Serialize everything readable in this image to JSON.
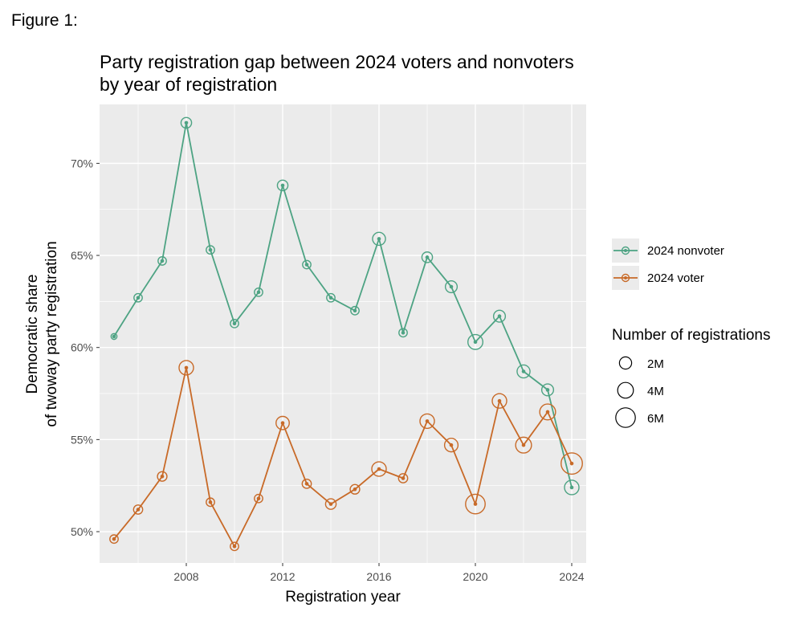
{
  "figure_label": "Figure 1:",
  "chart_data": {
    "type": "line",
    "title": "Party registration gap between 2024 voters and nonvoters",
    "subtitle": "by year of registration",
    "xlabel": "Registration year",
    "ylabel_line1": "Democratic share",
    "ylabel_line2": "of twoway party registration",
    "xlim": [
      2004.4,
      2024.6
    ],
    "ylim": [
      48.3,
      73.2
    ],
    "x_ticks": [
      2008,
      2012,
      2016,
      2020,
      2024
    ],
    "x_tick_labels": [
      "2008",
      "2012",
      "2016",
      "2020",
      "2024"
    ],
    "y_ticks": [
      50,
      55,
      60,
      65,
      70
    ],
    "y_tick_labels": [
      "50%",
      "55%",
      "60%",
      "65%",
      "70%"
    ],
    "grid": true,
    "legend_position": "right",
    "series": [
      {
        "name": "2024 nonvoter",
        "color": "#4da383",
        "x": [
          2005,
          2006,
          2007,
          2008,
          2009,
          2010,
          2011,
          2012,
          2013,
          2014,
          2015,
          2016,
          2017,
          2018,
          2019,
          2020,
          2021,
          2022,
          2023,
          2024
        ],
        "values": [
          60.6,
          62.7,
          64.7,
          72.2,
          65.3,
          61.3,
          63.0,
          68.8,
          64.5,
          62.7,
          62.0,
          65.9,
          60.8,
          64.9,
          63.3,
          60.3,
          61.7,
          58.7,
          57.7,
          52.4
        ],
        "registrations_m": [
          0.5,
          1.0,
          1.0,
          1.6,
          1.0,
          1.0,
          1.0,
          1.6,
          1.0,
          1.0,
          1.0,
          2.4,
          1.0,
          1.6,
          2.0,
          3.2,
          2.0,
          2.4,
          2.0,
          3.0
        ]
      },
      {
        "name": "2024 voter",
        "color": "#c86a28",
        "x": [
          2005,
          2006,
          2007,
          2008,
          2009,
          2010,
          2011,
          2012,
          2013,
          2014,
          2015,
          2016,
          2017,
          2018,
          2019,
          2020,
          2021,
          2022,
          2023,
          2024
        ],
        "values": [
          49.6,
          51.2,
          53.0,
          58.9,
          51.6,
          49.2,
          51.8,
          55.9,
          52.6,
          51.5,
          52.3,
          53.4,
          52.9,
          56.0,
          54.7,
          51.5,
          57.1,
          54.7,
          56.5,
          53.7
        ],
        "registrations_m": [
          1.0,
          1.2,
          1.3,
          3.0,
          1.0,
          1.0,
          1.0,
          2.5,
          1.2,
          1.6,
          1.3,
          3.0,
          1.2,
          3.0,
          2.6,
          5.5,
          3.0,
          3.6,
          3.6,
          6.5
        ]
      }
    ],
    "size_legend": {
      "title": "Number of registrations",
      "values_m": [
        2,
        4,
        6
      ],
      "labels": [
        "2M",
        "4M",
        "6M"
      ]
    },
    "colors": {
      "panel_bg": "#ebebeb",
      "grid": "#ffffff",
      "legend_key_bg": "#ebebeb"
    }
  }
}
